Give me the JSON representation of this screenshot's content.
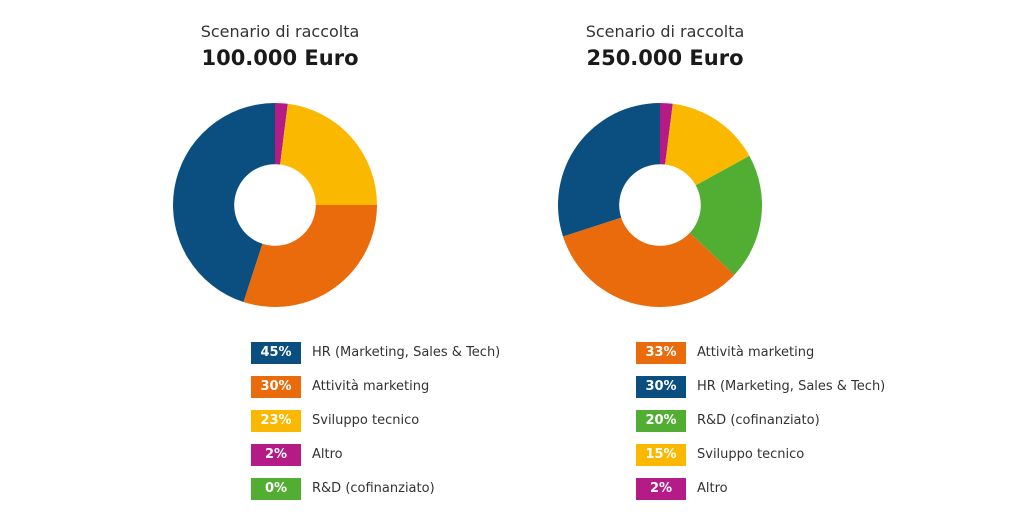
{
  "colors": {
    "hr": "#0b4f80",
    "marketing": "#ea6b0c",
    "sviluppo": "#fbb800",
    "altro": "#b51b87",
    "rd": "#52ad33"
  },
  "chart_data": [
    {
      "type": "pie",
      "title": "Scenario di raccolta",
      "subtitle": "100.000 Euro",
      "slices": [
        {
          "label": "Altro",
          "value": 2,
          "pct_label": "2%",
          "color_key": "altro"
        },
        {
          "label": "Sviluppo tecnico",
          "value": 23,
          "pct_label": "23%",
          "color_key": "sviluppo"
        },
        {
          "label": "Attività marketing",
          "value": 30,
          "pct_label": "30%",
          "color_key": "marketing"
        },
        {
          "label": "HR (Marketing, Sales & Tech)",
          "value": 45,
          "pct_label": "45%",
          "color_key": "hr"
        },
        {
          "label": "R&D (cofinanziato)",
          "value": 0,
          "pct_label": "0%",
          "color_key": "rd"
        }
      ],
      "legend": [
        {
          "pct": "45%",
          "label": "HR (Marketing, Sales & Tech)",
          "color_key": "hr"
        },
        {
          "pct": "30%",
          "label": "Attività marketing",
          "color_key": "marketing"
        },
        {
          "pct": "23%",
          "label": "Sviluppo tecnico",
          "color_key": "sviluppo"
        },
        {
          "pct": "2%",
          "label": "Altro",
          "color_key": "altro"
        },
        {
          "pct": "0%",
          "label": "R&D (cofinanziato)",
          "color_key": "rd"
        }
      ]
    },
    {
      "type": "pie",
      "title": "Scenario di raccolta",
      "subtitle": "250.000 Euro",
      "slices": [
        {
          "label": "Altro",
          "value": 2,
          "pct_label": "2%",
          "color_key": "altro"
        },
        {
          "label": "Sviluppo tecnico",
          "value": 15,
          "pct_label": "15%",
          "color_key": "sviluppo"
        },
        {
          "label": "R&D (cofinanziato)",
          "value": 20,
          "pct_label": "20%",
          "color_key": "rd"
        },
        {
          "label": "Attività marketing",
          "value": 33,
          "pct_label": "33%",
          "color_key": "marketing"
        },
        {
          "label": "HR (Marketing, Sales & Tech)",
          "value": 30,
          "pct_label": "30%",
          "color_key": "hr"
        }
      ],
      "legend": [
        {
          "pct": "33%",
          "label": "Attività marketing",
          "color_key": "marketing"
        },
        {
          "pct": "30%",
          "label": "HR (Marketing, Sales & Tech)",
          "color_key": "hr"
        },
        {
          "pct": "20%",
          "label": "R&D (cofinanziato)",
          "color_key": "rd"
        },
        {
          "pct": "15%",
          "label": "Sviluppo tecnico",
          "color_key": "sviluppo"
        },
        {
          "pct": "2%",
          "label": "Altro",
          "color_key": "altro"
        }
      ]
    }
  ]
}
